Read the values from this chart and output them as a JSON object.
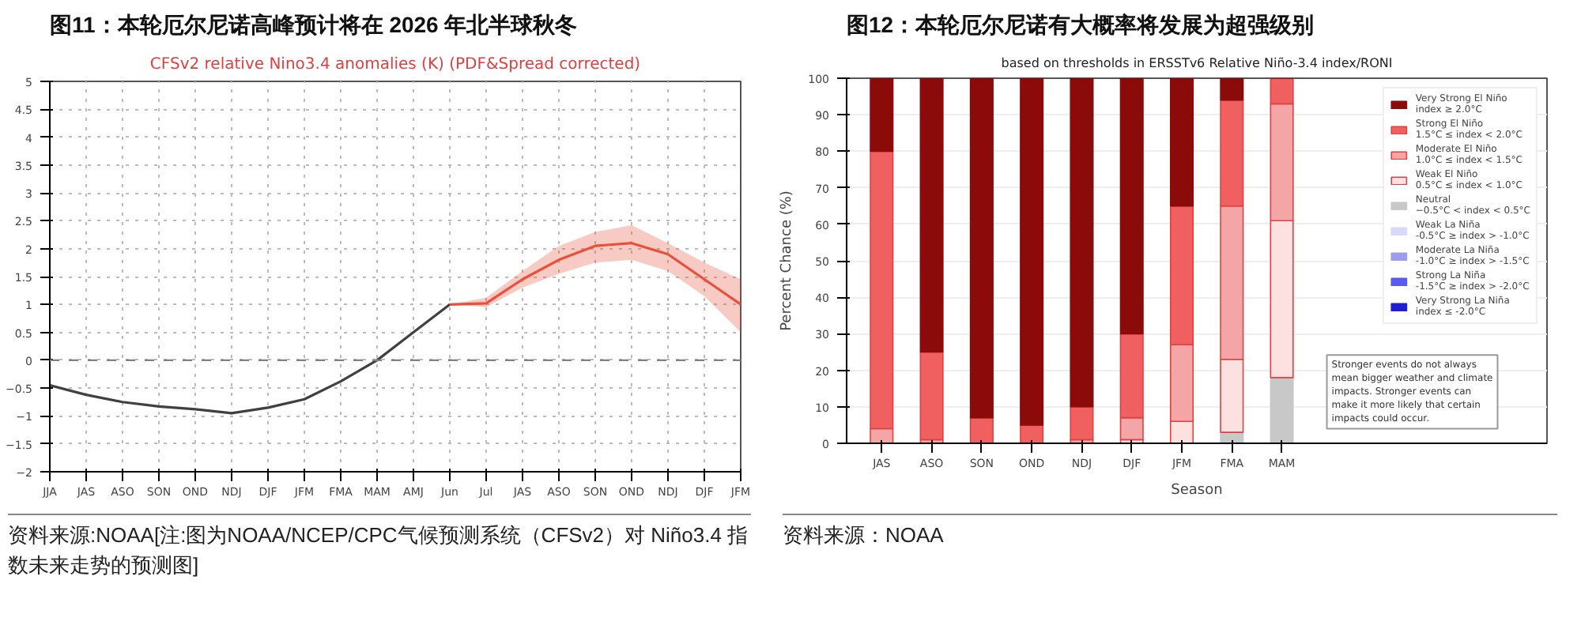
{
  "chart_data": [
    {
      "type": "line",
      "title": "图11：本轮厄尔尼诺高峰预计将在 2026 年北半球秋冬",
      "subtitle": "CFSv2 relative Nino3.4 anomalies (K) (PDF&Spread corrected)",
      "categories": [
        "JJA",
        "JAS",
        "ASO",
        "SON",
        "OND",
        "NDJ",
        "DJF",
        "JFM",
        "FMA",
        "MAM",
        "AMJ",
        "Jun",
        "Jul",
        "JAS",
        "ASO",
        "SON",
        "OND",
        "NDJ",
        "DJF",
        "JFM"
      ],
      "series": [
        {
          "color": "#404040",
          "values": [
            -0.45,
            -0.62,
            -0.75,
            -0.83,
            -0.88,
            -0.95,
            -0.85,
            -0.7,
            -0.38,
            0,
            0.5,
            1.0,
            null,
            null,
            null,
            null,
            null,
            null,
            null,
            null
          ]
        },
        {
          "color": "#e8503a",
          "values": [
            null,
            null,
            null,
            null,
            null,
            null,
            null,
            null,
            null,
            null,
            null,
            1.0,
            1.02,
            1.45,
            1.8,
            2.05,
            2.1,
            1.9,
            1.45,
            1.0
          ],
          "lower": [
            null,
            null,
            null,
            null,
            null,
            null,
            null,
            null,
            null,
            null,
            null,
            1.0,
            0.95,
            1.3,
            1.55,
            1.75,
            1.8,
            1.6,
            1.15,
            0.5
          ],
          "upper": [
            null,
            null,
            null,
            null,
            null,
            null,
            null,
            null,
            null,
            null,
            null,
            1.0,
            1.12,
            1.6,
            2.05,
            2.3,
            2.42,
            2.1,
            1.75,
            1.45
          ]
        }
      ],
      "ylim": [
        -2,
        5
      ],
      "yticks": [
        -2,
        -1.5,
        -1,
        -0.5,
        0,
        0.5,
        1,
        1.5,
        2,
        2.5,
        3,
        3.5,
        4,
        4.5,
        5
      ],
      "grid": true,
      "ref_lines": [
        {
          "axis": "y",
          "value": 0,
          "line_style": "dashed",
          "color": "#808080"
        }
      ],
      "annotations": [
        "资料来源:NOAA[注:图为NOAA/NCEP/CPC气候预测系统（CFSv2）对 Niño3.4 指数未来走势的预测图]"
      ]
    },
    {
      "type": "bar",
      "stacked": true,
      "title": "图12：本轮厄尔尼诺有大概率将发展为超强级别",
      "subtitle": "based on thresholds in ERSSTv6 Relative Niño-3.4 index/RONI",
      "xlabel": "Season",
      "ylabel": "Percent Chance (%)",
      "categories": [
        "JAS",
        "ASO",
        "SON",
        "OND",
        "NDJ",
        "DJF",
        "JFM",
        "FMA",
        "MAM"
      ],
      "series": [
        {
          "name": "Very Strong La Niña\nindex ≤ -2.0°C",
          "color": "#2020d0",
          "values": [
            0,
            0,
            0,
            0,
            0,
            0,
            0,
            0,
            0
          ]
        },
        {
          "name": "Strong La Niña\n-1.5°C ≥ index > -2.0°C",
          "color": "#5a5af0",
          "values": [
            0,
            0,
            0,
            0,
            0,
            0,
            0,
            0,
            0
          ]
        },
        {
          "name": "Moderate La Niña\n-1.0°C ≥ index > -1.5°C",
          "color": "#9d9df0",
          "values": [
            0,
            0,
            0,
            0,
            0,
            0,
            0,
            0,
            0
          ]
        },
        {
          "name": "Weak La Niña\n-0.5°C ≥ index > -1.0°C",
          "color": "#d8d8f8",
          "values": [
            0,
            0,
            0,
            0,
            0,
            0,
            0,
            0,
            0
          ]
        },
        {
          "name": "Neutral\n−0.5°C < index < 0.5°C",
          "color": "#c8c8c8",
          "values": [
            0,
            0,
            0,
            0,
            0,
            0,
            0,
            3,
            18
          ]
        },
        {
          "name": "Weak El Niño\n0.5°C ≤ index < 1.0°C",
          "color": "#fde0e0",
          "values": [
            0,
            0,
            0,
            0,
            0,
            1,
            6,
            20,
            43
          ]
        },
        {
          "name": "Moderate El Niño\n1.0°C ≤ index < 1.5°C",
          "color": "#f4a6a6",
          "values": [
            4,
            1,
            0,
            0,
            1,
            6,
            21,
            42,
            32
          ]
        },
        {
          "name": "Strong El Niño\n1.5°C ≤ index < 2.0°C",
          "color": "#f06060",
          "values": [
            76,
            24,
            7,
            5,
            9,
            23,
            38,
            29,
            7
          ]
        },
        {
          "name": "Very Strong El Niño\nindex ≥ 2.0°C",
          "color": "#8b0a0a",
          "values": [
            20,
            75,
            93,
            95,
            90,
            70,
            35,
            6,
            0
          ]
        }
      ],
      "ylim": [
        0,
        100
      ],
      "yticks": [
        0,
        10,
        20,
        30,
        40,
        50,
        60,
        70,
        80,
        90,
        100
      ],
      "grid": "y",
      "legend": "right",
      "annotations": [
        "Stronger events do not always\nmean bigger weather and climate\nimpacts. Stronger events can\nmake it more likely that certain\nimpacts could occur.",
        "资料来源：NOAA"
      ]
    }
  ]
}
